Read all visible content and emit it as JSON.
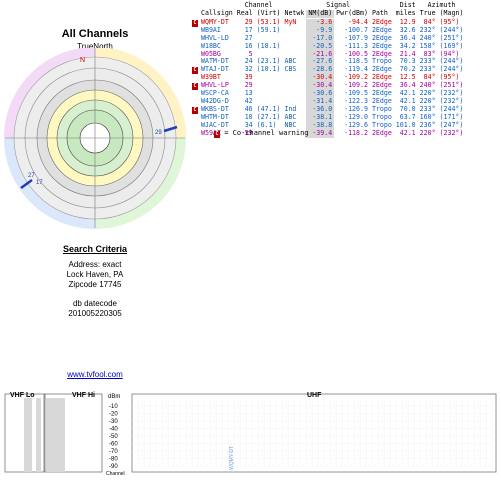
{
  "left_panel": {
    "title": "All Channels",
    "north_label": "TrueNorth",
    "n_marker": "N",
    "polar_markers": [
      "29",
      "27",
      "17"
    ],
    "search": {
      "heading": "Search Criteria",
      "address": "Address: exact",
      "city": "Lock Haven, PA",
      "zip": "Zipcode 17745",
      "db_label": "db datecode",
      "db_value": "201005220305"
    },
    "link": "www.tvfool.com"
  },
  "table": {
    "group_headers": {
      "channel": "Channel",
      "signal": "Signal",
      "dist": "Dist",
      "azimuth": "Azimuth"
    },
    "columns": [
      "Callsign",
      "Real",
      "(Virt)",
      "Netwk",
      "NM(dB)",
      "Pwr(dBm)",
      "Path",
      "miles",
      "True",
      "(Magn)"
    ],
    "rows": [
      {
        "cw": true,
        "callsign": "WQMY-DT",
        "real": "29",
        "virt": "(53.1)",
        "netwk": "MyN",
        "nm": "-3.6",
        "pwr": "-94.4",
        "path": "2Edge",
        "miles": "12.9",
        "true": "84°",
        "magn": "(95°)",
        "color": "#d00000"
      },
      {
        "cw": false,
        "callsign": "WB9AI",
        "real": "17",
        "virt": "(59.1)",
        "netwk": "",
        "nm": "-9.9",
        "pwr": "-100.7",
        "path": "2Edge",
        "miles": "32.6",
        "true": "232°",
        "magn": "(244°)",
        "color": "#1060c0"
      },
      {
        "cw": false,
        "callsign": "WHVL-LD",
        "real": "27",
        "virt": "",
        "netwk": "",
        "nm": "-17.0",
        "pwr": "-107.9",
        "path": "2Edge",
        "miles": "36.4",
        "true": "240°",
        "magn": "(251°)",
        "color": "#1060c0"
      },
      {
        "cw": false,
        "callsign": "W18BC",
        "real": "16",
        "virt": "(18.1)",
        "netwk": "",
        "nm": "-20.5",
        "pwr": "-111.3",
        "path": "2Edge",
        "miles": "34.2",
        "true": "158°",
        "magn": "(169°)",
        "color": "#1060c0"
      },
      {
        "cw": false,
        "callsign": "W05BG",
        "real": "5",
        "virt": "",
        "netwk": "",
        "nm": "-21.6",
        "pwr": "-100.5",
        "path": "2Edge",
        "miles": "21.4",
        "true": "83°",
        "magn": "(94°)",
        "color": "#a000a0"
      },
      {
        "cw": false,
        "callsign": "WATM-DT",
        "real": "24",
        "virt": "(23.1)",
        "netwk": "ABC",
        "nm": "-27.6",
        "pwr": "-118.5",
        "path": "Tropo",
        "miles": "70.3",
        "true": "233°",
        "magn": "(244°)",
        "color": "#1060c0"
      },
      {
        "cw": true,
        "callsign": "WTAJ-DT",
        "real": "32",
        "virt": "(10.1)",
        "netwk": "CBS",
        "nm": "-28.6",
        "pwr": "-119.4",
        "path": "2Edge",
        "miles": "70.2",
        "true": "233°",
        "magn": "(244°)",
        "color": "#1060c0"
      },
      {
        "cw": false,
        "callsign": "W39BT",
        "real": "39",
        "virt": "",
        "netwk": "",
        "nm": "-30.4",
        "pwr": "-109.2",
        "path": "2Edge",
        "miles": "12.5",
        "true": "84°",
        "magn": "(95°)",
        "color": "#d00000"
      },
      {
        "cw": true,
        "callsign": "WHVL-LP",
        "real": "29",
        "virt": "",
        "netwk": "",
        "nm": "-30.4",
        "pwr": "-109.2",
        "path": "2Edge",
        "miles": "36.4",
        "true": "240°",
        "magn": "(251°)",
        "color": "#a000a0"
      },
      {
        "cw": false,
        "callsign": "WSCP-CA",
        "real": "13",
        "virt": "",
        "netwk": "",
        "nm": "-30.6",
        "pwr": "-109.5",
        "path": "2Edge",
        "miles": "42.1",
        "true": "220°",
        "magn": "(232°)",
        "color": "#1060c0"
      },
      {
        "cw": false,
        "callsign": "W42DG-D",
        "real": "42",
        "virt": "",
        "netwk": "",
        "nm": "-31.4",
        "pwr": "-122.3",
        "path": "2Edge",
        "miles": "42.1",
        "true": "220°",
        "magn": "(232°)",
        "color": "#1060c0"
      },
      {
        "cw": true,
        "callsign": "WKBS-DT",
        "real": "46",
        "virt": "(47.1)",
        "netwk": "Ind",
        "nm": "-36.0",
        "pwr": "-126.9",
        "path": "Tropo",
        "miles": "70.0",
        "true": "233°",
        "magn": "(244°)",
        "color": "#1060c0"
      },
      {
        "cw": false,
        "callsign": "WHTM-DT",
        "real": "10",
        "virt": "(27.1)",
        "netwk": "ABC",
        "nm": "-38.1",
        "pwr": "-129.0",
        "path": "Tropo",
        "miles": "63.7",
        "true": "160°",
        "magn": "(171°)",
        "color": "#1060c0"
      },
      {
        "cw": false,
        "callsign": "WJAC-DT",
        "real": "34",
        "virt": "(6.1)",
        "netwk": "NBC",
        "nm": "-38.8",
        "pwr": "-129.6",
        "path": "Tropo",
        "miles": "101.0",
        "true": "236°",
        "magn": "(247°)",
        "color": "#1060c0"
      },
      {
        "cw": false,
        "callsign": "W59AZ",
        "real": "59",
        "virt": "",
        "netwk": "",
        "nm": "-39.4",
        "pwr": "-118.2",
        "path": "2Edge",
        "miles": "42.1",
        "true": "220°",
        "magn": "(232°)",
        "color": "#a000a0"
      }
    ],
    "warning": "= Co-channel warning",
    "cw_badge": "C"
  },
  "spectrum": {
    "vhf_lo": "VHF Lo",
    "vhf_hi": "VHF Hi",
    "uhf": "UHF",
    "dbm_label": "dBm",
    "y_ticks": [
      "-10",
      "-20",
      "-30",
      "-40",
      "-50",
      "-60",
      "-70",
      "-80",
      "-90"
    ],
    "channel_label": "Channel",
    "marker_label": "WQMY-DT"
  }
}
